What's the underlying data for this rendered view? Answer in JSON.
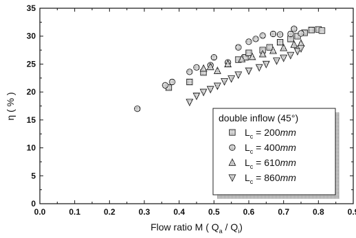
{
  "chart_data": {
    "type": "scatter",
    "title": "",
    "xlabel": {
      "prefix": "Flow ratio M ( Q",
      "sub1": "a",
      "mid": " / Q",
      "sub2": "i",
      "suffix": ")"
    },
    "ylabel": "η ( % )",
    "xlim": [
      0.0,
      0.9
    ],
    "ylim": [
      0,
      35
    ],
    "xticks": [
      "0.0",
      "0.1",
      "0.2",
      "0.3",
      "0.4",
      "0.5",
      "0.6",
      "0.7",
      "0.8",
      "0.9"
    ],
    "yticks": [
      "0",
      "5",
      "10",
      "15",
      "20",
      "25",
      "30",
      "35"
    ],
    "grid": false,
    "legend": {
      "title": "double inflow (45°)",
      "placement": "bottom-right",
      "entries": [
        {
          "prefix": "L",
          "sub": "c",
          "eq": " = 200",
          "unit": "mm"
        },
        {
          "prefix": "L",
          "sub": "c",
          "eq": " = 400",
          "unit": "mm"
        },
        {
          "prefix": "L",
          "sub": "c",
          "eq": " = 610",
          "unit": "mm"
        },
        {
          "prefix": "L",
          "sub": "c",
          "eq": " = 860",
          "unit": "mm"
        }
      ]
    },
    "series": [
      {
        "marker": "square",
        "points": [
          [
            0.37,
            20.8
          ],
          [
            0.43,
            21.8
          ],
          [
            0.47,
            23.5
          ],
          [
            0.57,
            25.8
          ],
          [
            0.59,
            26.2
          ],
          [
            0.6,
            27.0
          ],
          [
            0.64,
            27.5
          ],
          [
            0.66,
            28.0
          ],
          [
            0.69,
            28.9
          ],
          [
            0.72,
            29.5
          ],
          [
            0.74,
            30.0
          ],
          [
            0.76,
            30.6
          ],
          [
            0.78,
            31.1
          ],
          [
            0.8,
            31.2
          ],
          [
            0.81,
            31.0
          ]
        ]
      },
      {
        "marker": "circle",
        "points": [
          [
            0.28,
            17.0
          ],
          [
            0.36,
            21.2
          ],
          [
            0.38,
            21.8
          ],
          [
            0.43,
            23.6
          ],
          [
            0.45,
            24.4
          ],
          [
            0.49,
            24.8
          ],
          [
            0.5,
            26.2
          ],
          [
            0.54,
            25.3
          ],
          [
            0.57,
            28.0
          ],
          [
            0.6,
            29.0
          ],
          [
            0.62,
            29.5
          ],
          [
            0.64,
            30.1
          ],
          [
            0.67,
            30.4
          ],
          [
            0.69,
            30.3
          ],
          [
            0.72,
            30.4
          ],
          [
            0.73,
            31.3
          ],
          [
            0.75,
            30.5
          ]
        ]
      },
      {
        "marker": "triangle-up",
        "points": [
          [
            0.47,
            24.2
          ],
          [
            0.49,
            24.5
          ],
          [
            0.51,
            23.8
          ],
          [
            0.54,
            25.0
          ],
          [
            0.58,
            25.9
          ],
          [
            0.61,
            26.3
          ],
          [
            0.64,
            26.8
          ],
          [
            0.67,
            27.4
          ],
          [
            0.7,
            27.9
          ],
          [
            0.73,
            28.5
          ],
          [
            0.75,
            28.7
          ]
        ]
      },
      {
        "marker": "triangle-down",
        "points": [
          [
            0.43,
            18.2
          ],
          [
            0.45,
            19.3
          ],
          [
            0.47,
            20.0
          ],
          [
            0.49,
            20.5
          ],
          [
            0.51,
            21.1
          ],
          [
            0.53,
            21.9
          ],
          [
            0.55,
            22.4
          ],
          [
            0.57,
            23.1
          ],
          [
            0.6,
            23.8
          ],
          [
            0.63,
            24.4
          ],
          [
            0.65,
            25.0
          ],
          [
            0.68,
            25.6
          ],
          [
            0.7,
            26.1
          ],
          [
            0.72,
            26.6
          ],
          [
            0.74,
            27.3
          ],
          [
            0.75,
            27.8
          ]
        ]
      }
    ]
  }
}
